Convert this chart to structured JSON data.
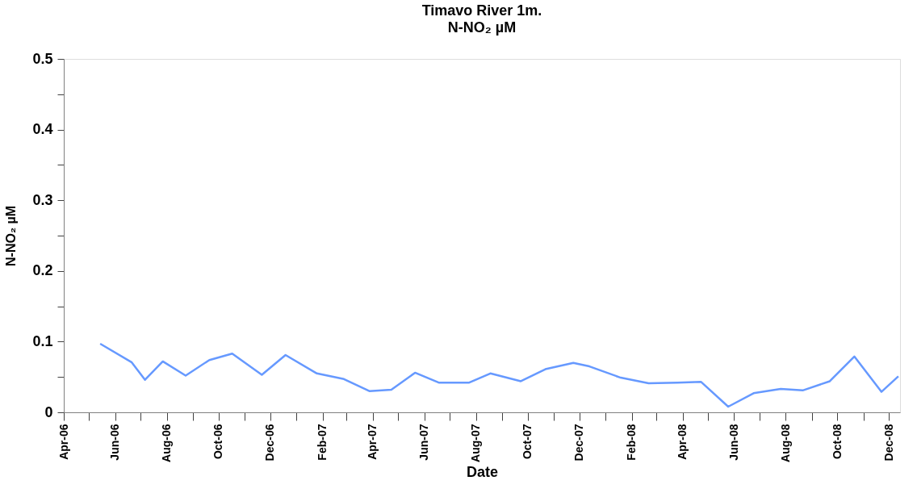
{
  "chart_data": {
    "type": "line",
    "title": "Timavo River 1m.",
    "subtitle": "N-NO₂ µM",
    "xlabel": "Date",
    "ylabel": "N-NO₂ µM",
    "x": [
      "2006-05-14",
      "2006-06-20",
      "2006-07-06",
      "2006-07-27",
      "2006-08-23",
      "2006-09-20",
      "2006-10-17",
      "2006-11-21",
      "2006-12-19",
      "2007-01-25",
      "2007-02-26",
      "2007-03-28",
      "2007-04-23",
      "2007-05-21",
      "2007-06-18",
      "2007-07-24",
      "2007-08-18",
      "2007-09-23",
      "2007-10-22",
      "2007-11-24",
      "2007-12-13",
      "2008-01-19",
      "2008-02-21",
      "2008-03-26",
      "2008-04-23",
      "2008-05-25",
      "2008-06-24",
      "2008-07-26",
      "2008-08-21",
      "2008-09-22",
      "2008-10-21",
      "2008-11-22",
      "2008-12-12"
    ],
    "series": [
      {
        "color": "#6699ff",
        "values": [
          0.097,
          0.071,
          0.046,
          0.072,
          0.052,
          0.074,
          0.083,
          0.053,
          0.081,
          0.055,
          0.047,
          0.03,
          0.032,
          0.056,
          0.042,
          0.042,
          0.055,
          0.044,
          0.061,
          0.07,
          0.065,
          0.049,
          0.041,
          0.042,
          0.043,
          0.008,
          0.027,
          0.033,
          0.031,
          0.044,
          0.079,
          0.029,
          0.051
        ]
      }
    ],
    "xlim": [
      "2006-04-01",
      "2008-12-14"
    ],
    "xticks": [
      {
        "value": "2006-04-01",
        "label": "Apr-06"
      },
      {
        "value": "2006-05-01",
        "label": null
      },
      {
        "value": "2006-06-01",
        "label": "Jun-06"
      },
      {
        "value": "2006-07-01",
        "label": null
      },
      {
        "value": "2006-08-01",
        "label": "Aug-06"
      },
      {
        "value": "2006-09-01",
        "label": null
      },
      {
        "value": "2006-10-01",
        "label": "Oct-06"
      },
      {
        "value": "2006-11-01",
        "label": null
      },
      {
        "value": "2006-12-01",
        "label": "Dec-06"
      },
      {
        "value": "2007-01-01",
        "label": null
      },
      {
        "value": "2007-02-01",
        "label": "Feb-07"
      },
      {
        "value": "2007-03-01",
        "label": null
      },
      {
        "value": "2007-04-01",
        "label": "Apr-07"
      },
      {
        "value": "2007-05-01",
        "label": null
      },
      {
        "value": "2007-06-01",
        "label": "Jun-07"
      },
      {
        "value": "2007-07-01",
        "label": null
      },
      {
        "value": "2007-08-01",
        "label": "Aug-07"
      },
      {
        "value": "2007-09-01",
        "label": null
      },
      {
        "value": "2007-10-01",
        "label": "Oct-07"
      },
      {
        "value": "2007-11-01",
        "label": null
      },
      {
        "value": "2007-12-01",
        "label": "Dec-07"
      },
      {
        "value": "2008-01-01",
        "label": null
      },
      {
        "value": "2008-02-01",
        "label": "Feb-08"
      },
      {
        "value": "2008-03-01",
        "label": null
      },
      {
        "value": "2008-04-01",
        "label": "Apr-08"
      },
      {
        "value": "2008-05-01",
        "label": null
      },
      {
        "value": "2008-06-01",
        "label": "Jun-08"
      },
      {
        "value": "2008-07-01",
        "label": null
      },
      {
        "value": "2008-08-01",
        "label": "Aug-08"
      },
      {
        "value": "2008-09-01",
        "label": null
      },
      {
        "value": "2008-10-01",
        "label": "Oct-08"
      },
      {
        "value": "2008-11-01",
        "label": null
      },
      {
        "value": "2008-12-01",
        "label": "Dec-08"
      }
    ],
    "ylim": [
      0,
      0.5
    ],
    "yticks": [
      0,
      {
        "value": 0.05,
        "label": null
      },
      0.1,
      {
        "value": 0.15,
        "label": null
      },
      0.2,
      {
        "value": 0.25,
        "label": null
      },
      0.3,
      {
        "value": 0.35,
        "label": null
      },
      0.4,
      {
        "value": 0.45,
        "label": null
      },
      0.5
    ],
    "grid": false,
    "marker": "none",
    "line_style": "solid"
  }
}
